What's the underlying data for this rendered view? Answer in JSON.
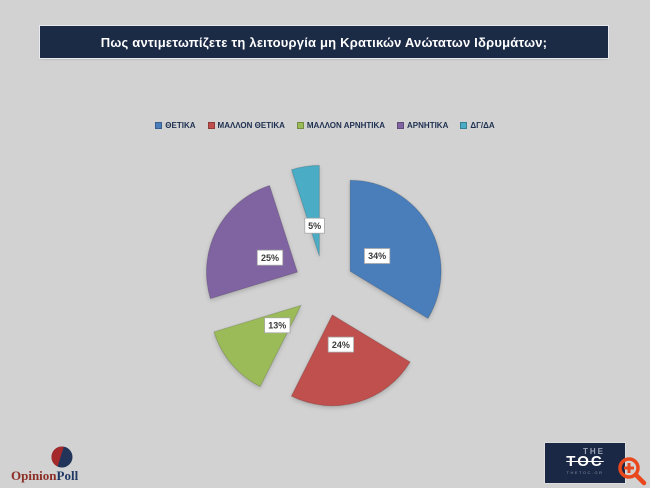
{
  "title": {
    "text": "Πως αντιμετωπίζετε τη λειτουργία μη Κρατικών Ανώτατων Ιδρυμάτων;"
  },
  "chart_data": {
    "type": "pie",
    "title": "Πως αντιμετωπίζετε τη λειτουργία μη Κρατικών Ανώτατων Ιδρυμάτων;",
    "categories": [
      "ΘΕΤΙΚΑ",
      "ΜΑΛΛΟΝ ΘΕΤΙΚΑ",
      "ΜΑΛΛΟΝ ΑΡΝΗΤΙΚΑ",
      "ΑΡΝΗΤΙΚΑ",
      "ΔΓ/ΔΑ"
    ],
    "values": [
      34,
      24,
      13,
      25,
      5
    ],
    "data_labels": [
      "34%",
      "24%",
      "13%",
      "25%",
      "5%"
    ],
    "colors": [
      "#4a7ebb",
      "#c0504d",
      "#9bbb59",
      "#8064a2",
      "#4bacc6"
    ],
    "legend_position": "top",
    "start_angle": 0,
    "direction": "clockwise",
    "exploded": true
  },
  "footer": {
    "opinionpoll": {
      "text_primary": "Opinion",
      "text_secondary": "Poll",
      "color_primary": "#8b2e25",
      "color_secondary": "#1f3864",
      "mark_red": "#a5292a",
      "mark_navy": "#223459"
    },
    "thetoc": {
      "line1": "THE",
      "line2": "TOC",
      "tagline": "THETOC.GR",
      "bg": "#1b2845"
    },
    "zoom_icon_color": "#e8481c"
  },
  "colors": {
    "background": "#d2d2d2",
    "title_bar": "#1b2a45",
    "title_text": "#ffffff",
    "legend_text": "#1e3050"
  }
}
